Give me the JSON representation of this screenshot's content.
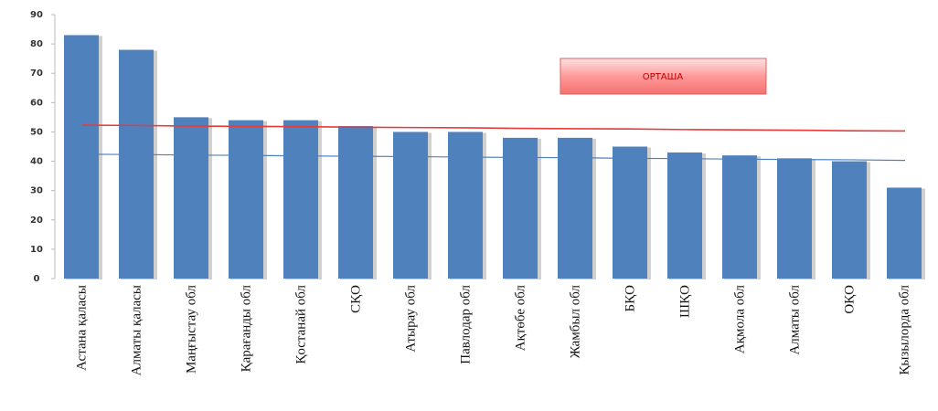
{
  "chart_data": {
    "type": "bar",
    "categories": [
      "Астана қаласы",
      "Алматы қаласы",
      "Маңғыстау обл",
      "Қарағанды обл",
      "Қостанай обл",
      "СҚО",
      "Атырау обл",
      "Павлодар обл",
      "Ақтөбе обл",
      "Жамбыл обл",
      "БҚО",
      "ШҚО",
      "Ақмола обл",
      "Алматы обл",
      "ОҚО",
      "Қызылорда обл"
    ],
    "values": [
      83,
      78,
      55,
      54,
      54,
      52,
      50,
      50,
      48,
      48,
      45,
      43,
      42,
      41,
      40,
      31
    ],
    "color": "#4f81bd",
    "lines": [
      {
        "name": "ОРТАША",
        "color": "#e83a3a",
        "values": [
          52.3,
          52.2,
          52.0,
          51.9,
          51.8,
          51.6,
          51.5,
          51.4,
          51.2,
          51.1,
          51.0,
          50.8,
          50.7,
          50.6,
          50.4,
          50.3
        ]
      },
      {
        "color": "#4f81bd",
        "values": [
          42.4,
          42.3,
          42.1,
          42.0,
          41.8,
          41.7,
          41.6,
          41.4,
          41.3,
          41.2,
          41.0,
          40.9,
          40.7,
          40.6,
          40.5,
          40.3
        ]
      }
    ],
    "ylim": [
      0,
      90
    ],
    "yticks": [
      0,
      10,
      20,
      30,
      40,
      50,
      60,
      70,
      80,
      90
    ]
  }
}
